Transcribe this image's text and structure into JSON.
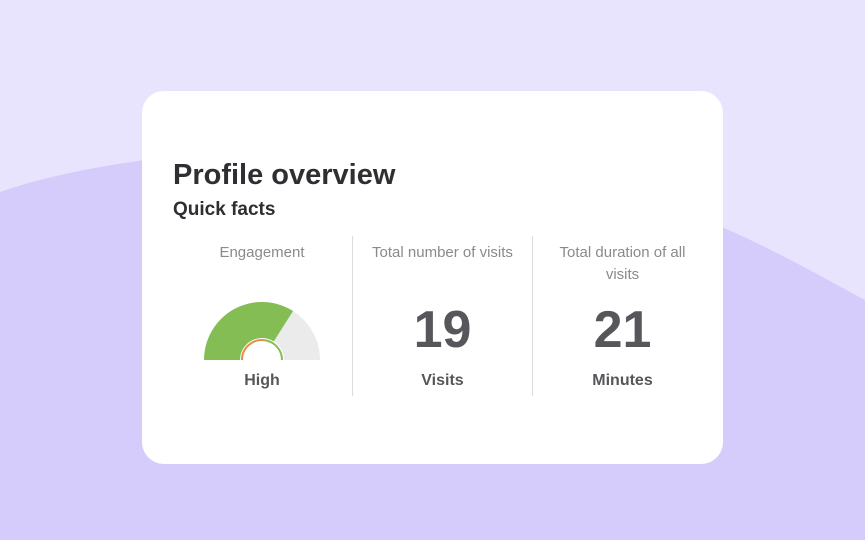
{
  "card": {
    "title": "Profile overview",
    "subtitle": "Quick facts"
  },
  "stats": [
    {
      "label": "Engagement",
      "unit": "High",
      "level": 0.68
    },
    {
      "label": "Total number of visits",
      "value": "19",
      "unit": "Visits"
    },
    {
      "label": "Total duration of all visits",
      "value": "21",
      "unit": "Minutes"
    }
  ],
  "colors": {
    "background_light": "#e8e4fd",
    "background_wave": "#d6ccfb",
    "card": "#ffffff",
    "gauge_fill": "#85bd55",
    "gauge_track": "#ebebeb",
    "gauge_inner_orange": "#e58e3f",
    "text_dark": "#2f2f33",
    "text_value": "#57575b",
    "text_muted": "#8a8a8e"
  }
}
